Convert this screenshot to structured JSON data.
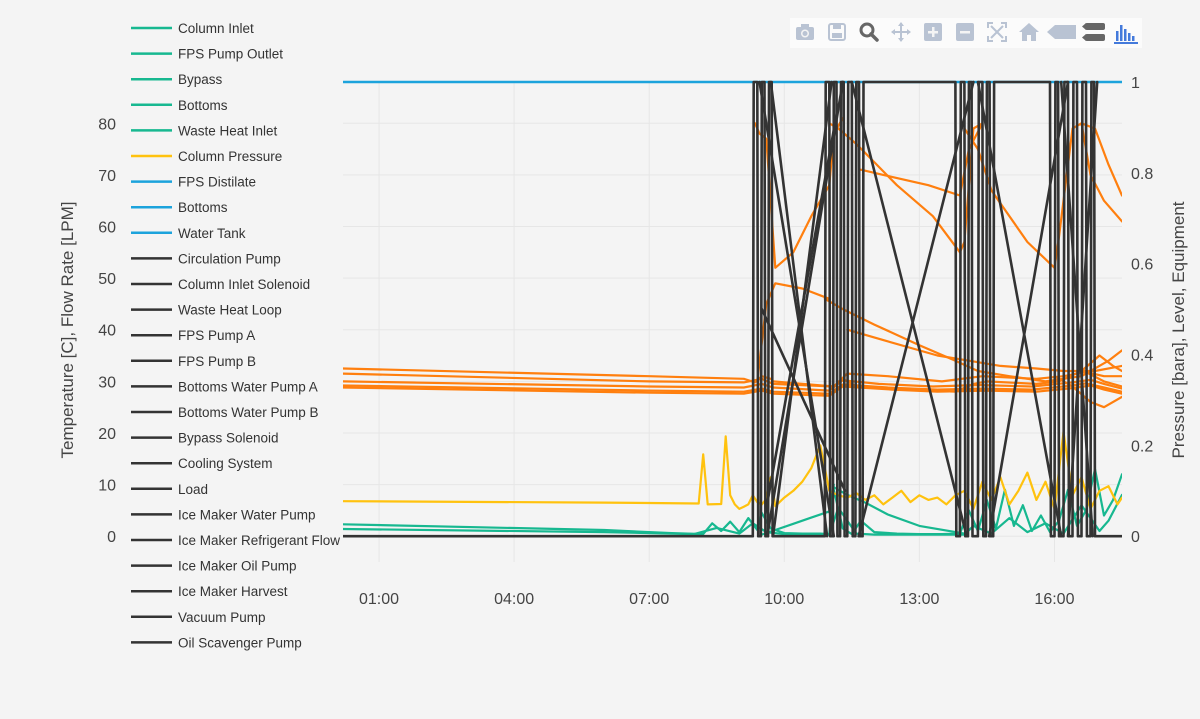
{
  "modebar": {
    "buttons": [
      {
        "name": "camera-icon"
      },
      {
        "name": "save-icon"
      },
      {
        "name": "zoom-icon"
      },
      {
        "name": "pan-icon"
      },
      {
        "name": "zoom-in-icon"
      },
      {
        "name": "zoom-out-icon"
      },
      {
        "name": "autoscale-icon"
      },
      {
        "name": "home-icon"
      },
      {
        "name": "hover-closest-icon"
      },
      {
        "name": "hover-compare-icon"
      },
      {
        "name": "plotly-logo-icon"
      }
    ],
    "icon_color": "#b9c3d3",
    "logo_color": "#447adb"
  },
  "chart_data": {
    "type": "line",
    "xlabel": "",
    "ylabel": "Temperature [C], Flow Rate [LPM]",
    "y2label": "Pressure [bara], Level, Equipment",
    "x_range": [
      0.2,
      17.5
    ],
    "ylim": [
      -5,
      88
    ],
    "y2lim": [
      -0.0568,
      1.0
    ],
    "x_ticks": [
      {
        "v": 1.0,
        "label": "01:00"
      },
      {
        "v": 4.0,
        "label": "04:00"
      },
      {
        "v": 7.0,
        "label": "07:00"
      },
      {
        "v": 10.0,
        "label": "10:00"
      },
      {
        "v": 13.0,
        "label": "13:00"
      },
      {
        "v": 16.0,
        "label": "16:00"
      }
    ],
    "y_ticks": [
      {
        "v": 0,
        "label": "0"
      },
      {
        "v": 10,
        "label": "10"
      },
      {
        "v": 20,
        "label": "20"
      },
      {
        "v": 30,
        "label": "30"
      },
      {
        "v": 40,
        "label": "40"
      },
      {
        "v": 50,
        "label": "50"
      },
      {
        "v": 60,
        "label": "60"
      },
      {
        "v": 70,
        "label": "70"
      },
      {
        "v": 80,
        "label": "80"
      }
    ],
    "y2_ticks": [
      {
        "v": 0,
        "label": "0"
      },
      {
        "v": 0.2,
        "label": "0.2"
      },
      {
        "v": 0.4,
        "label": "0.4"
      },
      {
        "v": 0.6,
        "label": "0.6"
      },
      {
        "v": 0.8,
        "label": "0.8"
      },
      {
        "v": 1.0,
        "label": "1"
      }
    ],
    "grid": true,
    "legend_position": "left",
    "colors": {
      "temperature": "#ff7f0e",
      "flow": "#17b890",
      "pressure": "#ffc20e",
      "level": "#1ca3dc",
      "equipment": "#333333"
    },
    "legend": [
      {
        "name": "Column Inlet",
        "color": "#17b890"
      },
      {
        "name": "FPS Pump Outlet",
        "color": "#17b890"
      },
      {
        "name": "Bypass",
        "color": "#17b890"
      },
      {
        "name": "Bottoms",
        "color": "#17b890"
      },
      {
        "name": "Waste Heat Inlet",
        "color": "#17b890"
      },
      {
        "name": "Column Pressure",
        "color": "#ffc20e"
      },
      {
        "name": "FPS Distilate",
        "color": "#1ca3dc"
      },
      {
        "name": "Bottoms",
        "color": "#1ca3dc"
      },
      {
        "name": "Water Tank",
        "color": "#1ca3dc"
      },
      {
        "name": "Circulation Pump",
        "color": "#333333"
      },
      {
        "name": "Column Inlet Solenoid",
        "color": "#333333"
      },
      {
        "name": "Waste Heat Loop",
        "color": "#333333"
      },
      {
        "name": "FPS Pump A",
        "color": "#333333"
      },
      {
        "name": "FPS Pump B",
        "color": "#333333"
      },
      {
        "name": "Bottoms Water Pump A",
        "color": "#333333"
      },
      {
        "name": "Bottoms Water Pump B",
        "color": "#333333"
      },
      {
        "name": "Bypass Solenoid",
        "color": "#333333"
      },
      {
        "name": "Cooling System",
        "color": "#333333"
      },
      {
        "name": "Load",
        "color": "#333333"
      },
      {
        "name": "Ice Maker Water Pump",
        "color": "#333333"
      },
      {
        "name": "Ice Maker Refrigerant Flow",
        "color": "#333333"
      },
      {
        "name": "Ice Maker Oil Pump",
        "color": "#333333"
      },
      {
        "name": "Ice Maker Harvest",
        "color": "#333333"
      },
      {
        "name": "Vacuum Pump",
        "color": "#333333"
      },
      {
        "name": "Oil Scavenger Pump",
        "color": "#333333"
      }
    ],
    "temperature_series": [
      {
        "x": [
          0.2,
          7,
          9.1,
          9.35,
          9.5,
          9.7,
          9.75,
          11.1,
          11.3,
          11.6,
          12.5,
          13.8,
          14.2,
          14.5,
          15.6,
          16.1,
          16.6,
          17.1,
          17.5
        ],
        "y": [
          32.5,
          31,
          30.5,
          29.8,
          31,
          30.5,
          30,
          29,
          30.5,
          29,
          28.5,
          28,
          29.5,
          30,
          29.5,
          30,
          32,
          31,
          31
        ]
      },
      {
        "x": [
          0.2,
          7,
          9.1,
          9.5,
          9.75,
          11.1,
          11.4,
          12.3,
          13.5,
          14.4,
          15.6,
          16.2,
          16.7,
          17.1,
          17.5
        ],
        "y": [
          31.5,
          30,
          29.8,
          30.5,
          29.5,
          29,
          31.5,
          31,
          30,
          31,
          30.5,
          31,
          31.8,
          30,
          29
        ]
      },
      {
        "x": [
          0.2,
          7,
          9.1,
          9.5,
          9.75,
          11,
          11.3,
          12.1,
          13.3,
          14.3,
          15.5,
          16.4,
          16.8,
          17.1,
          17.5
        ],
        "y": [
          30,
          29,
          28.8,
          29.5,
          28.8,
          28.2,
          30.2,
          29.5,
          29,
          29.3,
          29,
          29.8,
          30.3,
          29.5,
          28.6
        ]
      },
      {
        "x": [
          0.2,
          7,
          9.1,
          9.5,
          9.75,
          11,
          11.3,
          12.3,
          13.4,
          14.4,
          15.5,
          16.3,
          16.7,
          17.1,
          17.5
        ],
        "y": [
          29.2,
          28.2,
          28,
          28.6,
          28,
          27.6,
          29.4,
          28.8,
          28.4,
          28.6,
          28.4,
          29.1,
          29.6,
          28.8,
          28
        ]
      },
      {
        "x": [
          0.2,
          7,
          9.1,
          9.5,
          9.75,
          11,
          11.3,
          12.4,
          13.4,
          14.5,
          15.6,
          16.4,
          16.8,
          17.1,
          17.5
        ],
        "y": [
          28.8,
          27.8,
          27.6,
          28.2,
          27.6,
          27.2,
          29,
          28.4,
          28,
          28.2,
          28,
          28.7,
          29.2,
          28.4,
          27.6
        ]
      },
      {
        "x": [
          9.35,
          9.45,
          9.6,
          9.8,
          10.2,
          10.6,
          11.0,
          11.1,
          11.3
        ],
        "y": [
          80,
          78,
          77,
          52,
          55,
          62,
          68,
          78,
          81
        ]
      },
      {
        "x": [
          11.0,
          11.2,
          11.6,
          12.5,
          13.3,
          13.9,
          14.0,
          14.2,
          14.4
        ],
        "y": [
          80,
          79,
          76,
          68,
          62,
          55,
          57,
          79,
          80
        ]
      },
      {
        "x": [
          11.7,
          12.2,
          13.2,
          13.9,
          14.1,
          14.4
        ],
        "y": [
          71,
          70,
          68,
          66,
          75,
          80
        ]
      },
      {
        "x": [
          14.0,
          14.3,
          14.6,
          15.4,
          16.0,
          16.1,
          16.4,
          16.6,
          16.8,
          17.1,
          17.5
        ],
        "y": [
          79,
          75,
          67,
          57,
          52,
          58,
          79,
          80,
          70,
          65,
          61
        ]
      },
      {
        "x": [
          16.6,
          16.9,
          17.2,
          17.5
        ],
        "y": [
          80,
          79,
          72,
          66
        ]
      },
      {
        "x": [
          9.4,
          9.6,
          9.8,
          10.4,
          11.0
        ],
        "y": [
          30,
          45,
          49,
          48,
          46
        ]
      },
      {
        "x": [
          10.9,
          11.3,
          12.0,
          13.0,
          13.8,
          14.3,
          15.0,
          15.8,
          16.6,
          17.2,
          17.5
        ],
        "y": [
          46,
          44,
          41,
          37,
          34,
          32,
          31,
          30,
          31,
          34,
          36
        ]
      },
      {
        "x": [
          11.4,
          12.2,
          13.4,
          14.1,
          14.8,
          15.6,
          16.2,
          16.9,
          17.5
        ],
        "y": [
          40,
          38,
          35,
          34,
          33,
          32.5,
          32,
          32,
          33
        ]
      },
      {
        "x": [
          16.0,
          16.4,
          16.8,
          17.1,
          17.5
        ],
        "y": [
          31,
          29,
          26,
          25,
          27
        ]
      },
      {
        "x": [
          16.6,
          17.0,
          17.3,
          17.5
        ],
        "y": [
          32,
          35,
          33,
          32
        ]
      }
    ],
    "pressure_series": [
      {
        "x": [
          0.2,
          6.0,
          7.0,
          8.1,
          8.2,
          8.3,
          8.6,
          8.7,
          8.8,
          8.9,
          9.0,
          9.1,
          9.2,
          9.3,
          9.4,
          9.5,
          9.6,
          9.7,
          9.8,
          10.0,
          10.2,
          10.4,
          10.6,
          10.8,
          11.0,
          11.2,
          11.4,
          11.6,
          11.8,
          12.0,
          12.2,
          12.4,
          12.6,
          12.8,
          13.0,
          13.2,
          13.4,
          13.6,
          13.8,
          14.0,
          14.2,
          14.4,
          14.6,
          14.8,
          15.0,
          15.2,
          15.4,
          15.6,
          15.8,
          16.0,
          16.2,
          16.4,
          16.6,
          16.8,
          17.0,
          17.2,
          17.4,
          17.5
        ],
        "y": [
          0.077,
          0.074,
          0.073,
          0.072,
          0.18,
          0.07,
          0.071,
          0.22,
          0.09,
          0.07,
          0.06,
          0.065,
          0.07,
          0.09,
          0.075,
          0.07,
          0.082,
          0.13,
          0.066,
          0.085,
          0.1,
          0.12,
          0.15,
          0.2,
          0.1,
          0.09,
          0.085,
          0.095,
          0.08,
          0.09,
          0.07,
          0.085,
          0.1,
          0.075,
          0.09,
          0.08,
          0.085,
          0.07,
          0.09,
          0.1,
          0.06,
          0.12,
          0.08,
          0.13,
          0.07,
          0.1,
          0.14,
          0.08,
          0.12,
          0.06,
          0.23,
          0.09,
          0.13,
          0.06,
          0.1,
          0.11,
          0.07,
          0.085
        ]
      }
    ],
    "flow_series": [
      {
        "x": [
          0.2,
          6,
          7.5,
          8.2,
          8.4,
          8.6,
          8.8,
          9.0,
          9.2,
          9.4,
          9.5,
          9.7,
          10,
          10.4,
          10.8,
          11.0,
          11.1,
          11.3,
          11.5,
          11.7,
          12,
          12.5,
          13,
          13.5,
          13.9,
          14.1,
          14.3,
          14.5,
          14.7,
          14.9,
          15.1,
          15.3,
          15.5,
          15.7,
          15.9,
          16.1,
          16.3,
          16.5,
          16.7,
          16.9,
          17.1,
          17.3,
          17.5
        ],
        "y": [
          2.3,
          1.2,
          0.6,
          0.4,
          2.5,
          1,
          2.8,
          0.8,
          3.5,
          1.2,
          4.5,
          1.5,
          0.6,
          0.5,
          0.5,
          0.4,
          9,
          1.5,
          0.4,
          3,
          0.8,
          0.5,
          0.4,
          0.4,
          0.5,
          5,
          1,
          7,
          1.5,
          9,
          2,
          6,
          1,
          4,
          0.8,
          3,
          9,
          2,
          5,
          13,
          4,
          7,
          12
        ]
      },
      {
        "x": [
          0.2,
          6,
          8,
          8.5,
          9,
          9.3,
          9.6,
          10,
          10.5,
          11,
          11.2,
          11.6,
          12,
          13,
          14,
          14.2,
          14.6,
          15,
          15.4,
          15.8,
          16.2,
          16.6,
          17,
          17.2,
          17.5
        ],
        "y": [
          1.4,
          0.8,
          0.4,
          1.6,
          0.5,
          2.5,
          0.8,
          0.4,
          0.3,
          0.3,
          5.5,
          0.5,
          0.3,
          0.3,
          0.3,
          2,
          0.5,
          3.5,
          0.8,
          2.5,
          0.5,
          6,
          1,
          3,
          8
        ]
      },
      {
        "x": [
          9.5,
          9.8,
          10.2,
          10.6,
          11.0,
          11.1
        ],
        "y": [
          0.3,
          1.2,
          2.4,
          3.6,
          4.8,
          10
        ]
      },
      {
        "x": [
          11.1,
          11.4,
          11.8,
          12.3,
          13.0,
          14.0
        ],
        "y": [
          9.5,
          8,
          6.5,
          4.2,
          2,
          0.5
        ]
      }
    ],
    "level_series": [
      {
        "x": [
          0.2,
          17.5
        ],
        "y": [
          1.0,
          1.0
        ]
      }
    ],
    "equipment_series": [
      {
        "x": [
          0.2,
          9.3,
          9.32,
          9.4,
          9.42,
          9.48,
          9.5,
          9.56,
          9.58,
          9.64,
          9.66,
          9.72,
          9.74,
          10.9,
          10.92,
          11.0,
          11.02,
          11.08,
          11.1,
          11.16,
          11.18,
          11.24,
          11.26,
          11.32,
          11.34,
          11.4,
          11.42,
          11.5,
          11.52,
          11.58,
          11.6,
          11.66,
          11.68,
          11.74,
          11.76,
          13.8,
          13.82,
          13.9,
          13.92,
          14.0,
          14.02,
          14.08,
          14.1,
          14.16,
          14.18,
          14.3,
          14.32,
          14.4,
          14.42,
          14.48,
          14.5,
          14.56,
          14.58,
          14.64,
          14.66,
          15.9,
          15.92,
          16.0,
          16.02,
          16.08,
          16.1,
          16.2,
          16.22,
          16.3,
          16.32,
          16.4,
          16.42,
          16.5,
          16.52,
          16.6,
          16.62,
          16.7,
          16.72,
          16.8,
          16.82,
          16.88,
          16.9,
          17.5
        ],
        "y": [
          0,
          0,
          1,
          1,
          0,
          0,
          1,
          1,
          0,
          0,
          1,
          1,
          0,
          0,
          1,
          1,
          0,
          0,
          1,
          1,
          0,
          0,
          1,
          1,
          0,
          0,
          1,
          1,
          0,
          0,
          1,
          1,
          0,
          0,
          1,
          1,
          0,
          0,
          1,
          1,
          0,
          0,
          1,
          1,
          0,
          0,
          1,
          1,
          0,
          0,
          1,
          1,
          0,
          0,
          1,
          1,
          0,
          0,
          1,
          1,
          0,
          0,
          1,
          1,
          0,
          0,
          1,
          1,
          0,
          0,
          1,
          1,
          0,
          0,
          1,
          1,
          0,
          0
        ]
      },
      {
        "x": [
          9.45,
          11.1
        ],
        "y": [
          1,
          0
        ]
      },
      {
        "x": [
          9.62,
          11.3
        ],
        "y": [
          0,
          1
        ]
      },
      {
        "x": [
          9.75,
          11.05
        ],
        "y": [
          0,
          1
        ]
      },
      {
        "x": [
          9.7,
          10.95
        ],
        "y": [
          1,
          0
        ]
      },
      {
        "x": [
          9.5,
          11.35
        ],
        "y": [
          0.5,
          0.1
        ]
      },
      {
        "x": [
          9.58,
          11.2
        ],
        "y": [
          0.05,
          0.95
        ]
      },
      {
        "x": [
          11.5,
          14.05
        ],
        "y": [
          1,
          0
        ]
      },
      {
        "x": [
          11.65,
          14.2
        ],
        "y": [
          0,
          1
        ]
      },
      {
        "x": [
          14.3,
          16.15
        ],
        "y": [
          1,
          0
        ]
      },
      {
        "x": [
          14.55,
          16.3
        ],
        "y": [
          0,
          1
        ]
      },
      {
        "x": [
          16.3,
          16.95
        ],
        "y": [
          0,
          1
        ]
      },
      {
        "x": [
          16.15,
          16.85
        ],
        "y": [
          1,
          0
        ]
      }
    ]
  }
}
